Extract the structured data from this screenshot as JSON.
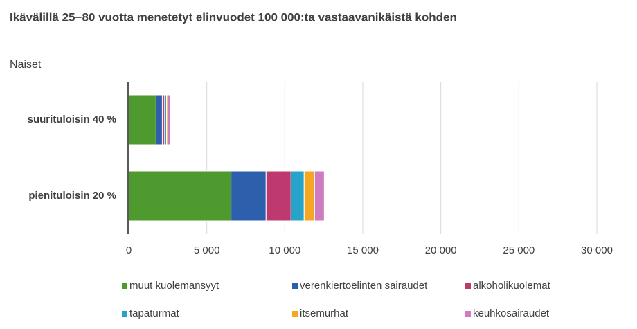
{
  "chart_data": {
    "type": "stacked-horizontal-bar",
    "title": "Ikävälillä 25−80 vuotta menetetyt elinvuodet 100 000:ta vastaavanikäistä kohden",
    "subtitle": "Naiset",
    "categories": [
      "suurituloisin 40 %",
      "pienituloisin 20 %"
    ],
    "series": [
      {
        "name": "muut kuolemansyyt",
        "color": "#4e9a2e",
        "values": [
          1750,
          6550
        ]
      },
      {
        "name": "verenkiertoelinten sairaudet",
        "color": "#2e5fac",
        "values": [
          400,
          2250
        ]
      },
      {
        "name": "alkoholikuolemat",
        "color": "#be3a6e",
        "values": [
          150,
          1600
        ]
      },
      {
        "name": "tapaturmat",
        "color": "#27a3c9",
        "values": [
          120,
          840
        ]
      },
      {
        "name": "itsemurhat",
        "color": "#f5a623",
        "values": [
          80,
          670
        ]
      },
      {
        "name": "keuhkosairaudet",
        "color": "#cf7bbf",
        "values": [
          150,
          620
        ]
      }
    ],
    "xlim": [
      0,
      30000
    ],
    "xticks": [
      0,
      {
        "value": 5000,
        "label": "5 000"
      },
      {
        "value": 10000,
        "label": "10 000"
      },
      {
        "value": 15000,
        "label": "15 000"
      },
      {
        "value": 20000,
        "label": "20 000"
      },
      {
        "value": 25000,
        "label": "25 000"
      },
      {
        "value": 30000,
        "label": "30 000"
      }
    ],
    "grid": true
  }
}
